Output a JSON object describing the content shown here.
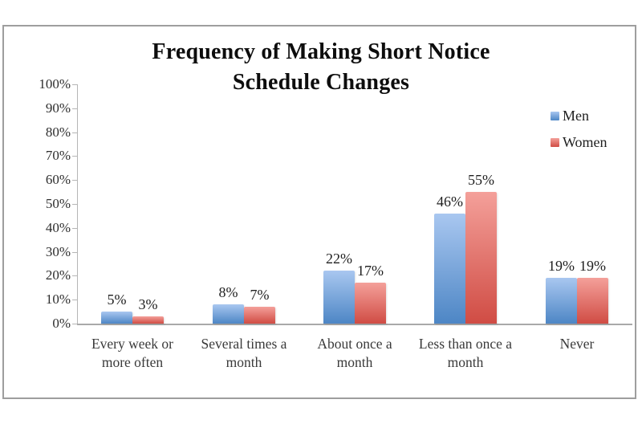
{
  "chart_data": {
    "type": "bar",
    "title_lines": [
      "Frequency of Making Short Notice",
      "Schedule Changes"
    ],
    "title": "Frequency of Making Short Notice Schedule Changes",
    "categories": [
      "Every week or\nmore often",
      "Several times a\nmonth",
      "About once a\nmonth",
      "Less than once a\nmonth",
      "Never"
    ],
    "series": [
      {
        "name": "Men",
        "values": [
          5,
          8,
          22,
          46,
          19
        ],
        "color_top": "#a9c7f0",
        "color_bottom": "#4d86c5"
      },
      {
        "name": "Women",
        "values": [
          3,
          7,
          17,
          55,
          19
        ],
        "color_top": "#f4a09a",
        "color_bottom": "#d04c44"
      }
    ],
    "data_labels": {
      "Men": [
        "5%",
        "8%",
        "22%",
        "46%",
        "19%"
      ],
      "Women": [
        "3%",
        "7%",
        "17%",
        "55%",
        "19%"
      ]
    },
    "ylim": [
      0,
      100
    ],
    "y_ticks": [
      "0%",
      "10%",
      "20%",
      "30%",
      "40%",
      "50%",
      "60%",
      "70%",
      "80%",
      "90%",
      "100%"
    ],
    "grid": false,
    "legend_position": "top-right",
    "frame_border_color": "#9e9e9e",
    "axis_color": "#b6b6b6"
  }
}
